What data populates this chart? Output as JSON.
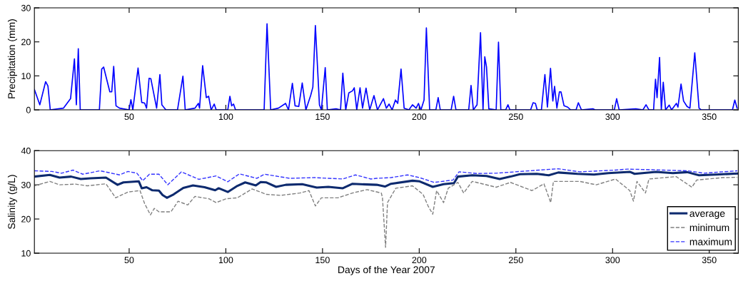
{
  "chart_data": [
    {
      "type": "line",
      "ylabel": "Precipitation (mm)",
      "xlim": [
        1,
        365
      ],
      "ylim": [
        0,
        30
      ],
      "xticks": [
        50,
        100,
        150,
        200,
        250,
        300,
        350
      ],
      "yticks": [
        0,
        10,
        20,
        30
      ],
      "grid": false,
      "legend": false,
      "marker": "none",
      "series": [
        {
          "color": "#0000ff",
          "line_style": "solid",
          "x": [
            1,
            3.8,
            6.8,
            8,
            9.2,
            16,
            19.7,
            21.7,
            22.7,
            23.7,
            24.7,
            34.6,
            35.8,
            36.8,
            40,
            41,
            42,
            43.2,
            45,
            50,
            50.9,
            51.9,
            54.6,
            56.5,
            58,
            59,
            60.3,
            61.2,
            64.2,
            65.9,
            66.9,
            69,
            75,
            77.8,
            79,
            84,
            85.8,
            86.4,
            88,
            89.9,
            91.1,
            92.4,
            94,
            95,
            101,
            102.1,
            103,
            104,
            105,
            119.8,
            121.3,
            123.2,
            127.2,
            130.9,
            132.4,
            134.4,
            135.8,
            137.7,
            139.5,
            141.4,
            143.9,
            145,
            146.3,
            148.4,
            149.4,
            151.4,
            152.5,
            157,
            159.3,
            160.5,
            162,
            163.6,
            165.5,
            166.4,
            167.7,
            169.4,
            170.7,
            172.5,
            174.4,
            176.6,
            178.4,
            181.5,
            183,
            184.4,
            186,
            187.7,
            188.9,
            190.6,
            192.2,
            194.7,
            196.5,
            198.4,
            199.6,
            200.9,
            202.5,
            203.7,
            205.4,
            208.6,
            209.8,
            210.9,
            216.5,
            217.8,
            219,
            225.6,
            226.8,
            228,
            229.9,
            231.7,
            233,
            233.9,
            234.8,
            236,
            239.8,
            241,
            242.2,
            244.7,
            245.9,
            246.9,
            257.6,
            258.9,
            260.1,
            261,
            263.2,
            265,
            266.3,
            267.9,
            269.1,
            270,
            271.2,
            272.5,
            273.3,
            274.9,
            276.8,
            278.3,
            281.1,
            282.3,
            283.9,
            289.8,
            291,
            300.9,
            302.1,
            303.4,
            312,
            315.7,
            317.3,
            318.8,
            321.2,
            322.2,
            323,
            324.3,
            325.2,
            326.2,
            327.4,
            329.3,
            330.5,
            333,
            333.8,
            335.4,
            336.7,
            338.5,
            340,
            342.5,
            344.7,
            345.9,
            362,
            363.2,
            364.4
          ],
          "values": [
            6,
            1.5,
            8.3,
            7,
            0,
            0.5,
            3.3,
            15,
            1.5,
            18,
            0,
            0,
            12,
            12.6,
            5.3,
            5.3,
            12.8,
            1.2,
            0.5,
            0,
            3,
            0,
            12.3,
            2.2,
            2,
            0.5,
            9.3,
            9.2,
            0.5,
            10.4,
            1.5,
            0,
            0,
            9.9,
            0,
            0.5,
            1.9,
            0.5,
            13,
            3.6,
            4,
            0,
            1.7,
            0,
            0,
            4,
            1.2,
            1.7,
            0,
            0,
            25.3,
            0,
            0.5,
            1.9,
            0,
            7.8,
            1.2,
            1,
            7.9,
            0,
            4.3,
            6.7,
            24.8,
            1.5,
            0,
            12.4,
            0,
            0.3,
            0,
            10.8,
            0,
            5,
            5.6,
            6.5,
            0,
            6.5,
            0.5,
            6.4,
            0,
            4.2,
            0,
            3.3,
            0.5,
            1.7,
            0,
            2.9,
            1.9,
            12,
            0.5,
            0,
            1.5,
            0.5,
            1.9,
            0,
            2.9,
            24.1,
            0,
            0,
            3.6,
            0,
            0,
            4,
            0,
            0,
            7.2,
            0,
            1.5,
            22.7,
            0,
            15.6,
            12.6,
            0.3,
            0,
            19.9,
            0,
            0,
            1.5,
            0,
            0,
            2.1,
            1.9,
            0,
            0,
            10.4,
            0.8,
            12.2,
            2.6,
            6.9,
            0.5,
            5.3,
            5.3,
            1.2,
            0.8,
            0,
            0,
            2.1,
            0,
            0.3,
            0,
            0,
            3.3,
            0,
            0.3,
            0,
            1.5,
            0,
            0,
            9,
            3.6,
            15.4,
            0,
            8.1,
            0,
            1.4,
            0,
            1.9,
            0.8,
            7.6,
            2.6,
            1,
            0.5,
            16.8,
            0.5,
            0,
            0,
            2.9,
            0.5
          ]
        }
      ]
    },
    {
      "type": "line",
      "xlabel": "Days of the Year 2007",
      "ylabel": "Salinity (g/L)",
      "xlim": [
        1,
        365
      ],
      "ylim": [
        10,
        40
      ],
      "xticks": [
        50,
        100,
        150,
        200,
        250,
        300,
        350
      ],
      "yticks": [
        10,
        20,
        30,
        40
      ],
      "grid": false,
      "legend": "bottom right",
      "marker": "none",
      "series": [
        {
          "name": "average",
          "color": "#0d2a6e",
          "line_style": "solid",
          "x": [
            1,
            9,
            14,
            20,
            25,
            30,
            38,
            44,
            47,
            55,
            56.5,
            59,
            62,
            65.4,
            67.3,
            69.5,
            73,
            78,
            83,
            89,
            94.5,
            96.3,
            101,
            106,
            110,
            115.5,
            118,
            121,
            126,
            131,
            139.5,
            147,
            153,
            160.5,
            165.5,
            173,
            178,
            182.3,
            185.4,
            196.5,
            200.2,
            207,
            212.6,
            218,
            220,
            227.4,
            234.8,
            241.6,
            247.2,
            252.1,
            260.8,
            267,
            271.9,
            281.8,
            290.4,
            297.8,
            308.9,
            311.4,
            322.5,
            331.2,
            338.6,
            344.7,
            353.4,
            364.5
          ],
          "values": [
            32.4,
            32.9,
            32.1,
            32.4,
            31.7,
            31.9,
            32.1,
            30,
            30.7,
            31,
            29,
            29.3,
            28.4,
            28.3,
            27,
            26.2,
            27.2,
            29.1,
            29.8,
            29.3,
            28.4,
            29,
            27.9,
            29.7,
            30.7,
            29.8,
            30.8,
            30.7,
            29.4,
            30,
            30.2,
            29.2,
            29.4,
            29,
            30.3,
            30.1,
            30,
            29.5,
            30.3,
            31.2,
            31,
            29.4,
            30.2,
            30.5,
            32.4,
            32.8,
            32.6,
            31.7,
            32.4,
            33.1,
            33.2,
            32.8,
            33.6,
            33.2,
            33,
            33.4,
            33.8,
            33.2,
            33.8,
            33.4,
            33.7,
            32.8,
            33,
            33.3
          ]
        },
        {
          "name": "minimum",
          "color": "#808080",
          "line_style": "dashed",
          "x": [
            1,
            9,
            14,
            22.2,
            28.4,
            38,
            43,
            49.4,
            55.6,
            58,
            61,
            63,
            65.4,
            71.6,
            75.3,
            80.3,
            84,
            91.4,
            95,
            100,
            106,
            113.6,
            121,
            128.4,
            138.3,
            143,
            146.3,
            149.4,
            158,
            165.5,
            173,
            180.4,
            181,
            182.6,
            183.6,
            187.9,
            196.5,
            202,
            204.6,
            207,
            209,
            212.6,
            215,
            220,
            223,
            227.4,
            239.8,
            247.2,
            258.3,
            264.5,
            268,
            269.4,
            283,
            291.6,
            301.5,
            308.9,
            310.8,
            312.6,
            317,
            318.8,
            332.9,
            341,
            343.5,
            357,
            364.5
          ],
          "values": [
            29.7,
            31,
            30,
            30.2,
            29.7,
            30.3,
            26.2,
            27.9,
            28.3,
            24.5,
            21.2,
            23.1,
            22.1,
            22.1,
            25.2,
            24.1,
            26.6,
            25.9,
            24.8,
            25.9,
            26.2,
            28.8,
            27.2,
            26.9,
            27.6,
            28.3,
            23.8,
            26.2,
            26.2,
            27.6,
            28.6,
            27.6,
            26.2,
            11.7,
            24.8,
            29,
            29.7,
            27.2,
            23.8,
            21.4,
            28.3,
            24.8,
            29,
            30.7,
            27.6,
            31,
            29.3,
            30.7,
            28.3,
            30.3,
            24.8,
            31,
            31,
            30,
            31.7,
            28.3,
            25.2,
            31,
            27.6,
            31.7,
            32.4,
            29.3,
            31.4,
            32.1,
            32.2
          ]
        },
        {
          "name": "maximum",
          "color": "#3333ff",
          "line_style": "dashed",
          "x": [
            1,
            10,
            15,
            21,
            26,
            35,
            45,
            49.4,
            54,
            57,
            60.5,
            65.4,
            70,
            77,
            86,
            95,
            101,
            107,
            116,
            120,
            133,
            146,
            160.5,
            167,
            175,
            178,
            185.4,
            194,
            200.2,
            207.7,
            217.5,
            220.6,
            229.9,
            239.8,
            252.1,
            262,
            271.9,
            283,
            301.5,
            307.7,
            326.2,
            338.6,
            347.2,
            364.5
          ],
          "values": [
            34.1,
            33.9,
            33.4,
            34.3,
            33.1,
            34.1,
            32.9,
            33.9,
            33.4,
            31.2,
            33.1,
            33.1,
            30,
            33.8,
            31.6,
            32.6,
            30.9,
            33.2,
            31.9,
            33.1,
            31.9,
            32.1,
            31.7,
            32.9,
            31.7,
            31.9,
            32.1,
            32.9,
            32.1,
            30.7,
            31.4,
            33.8,
            33.3,
            33.4,
            33.9,
            34.3,
            34.7,
            33.8,
            34.3,
            34.6,
            34.3,
            34.1,
            33.4,
            34.1
          ]
        }
      ]
    }
  ]
}
